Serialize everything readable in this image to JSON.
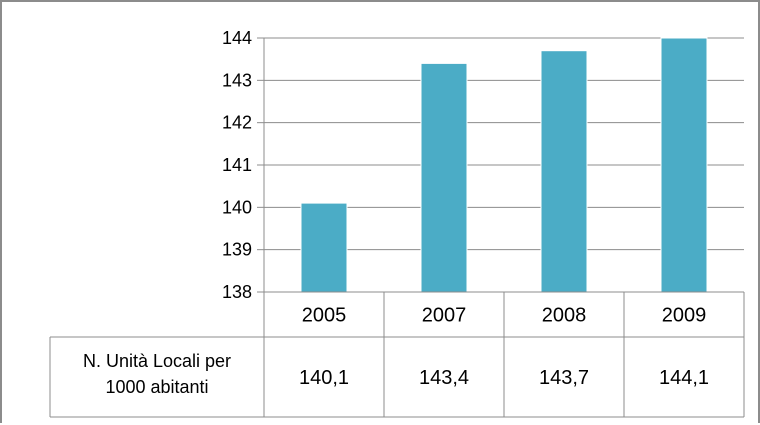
{
  "chart_data": {
    "type": "bar",
    "categories": [
      "2005",
      "2007",
      "2008",
      "2009"
    ],
    "series": [
      {
        "name": "N. Unità Locali per 1000 abitanti",
        "values": [
          140.1,
          143.4,
          143.7,
          144.1
        ]
      }
    ],
    "data_table": {
      "row_label_lines": [
        "N. Unità Locali per",
        "1000 abitanti"
      ],
      "row_values": [
        "140,1",
        "143,4",
        "143,7",
        "144,1"
      ]
    },
    "y_ticks": [
      "138",
      "139",
      "140",
      "141",
      "142",
      "143",
      "144"
    ],
    "ylim": [
      138,
      144
    ],
    "grid": true,
    "bar_color": "#4bacc6",
    "title": "",
    "xlabel": "",
    "ylabel": ""
  }
}
